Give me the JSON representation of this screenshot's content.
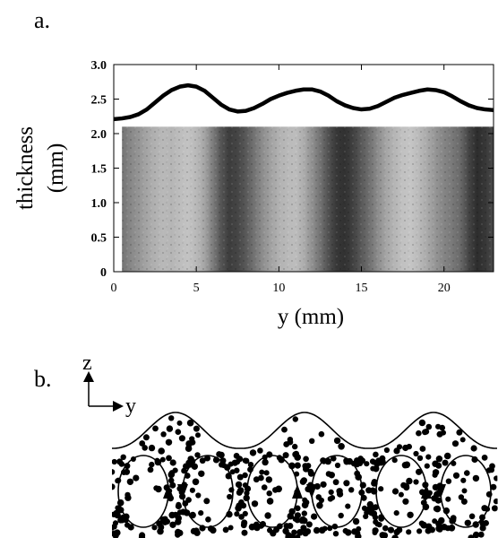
{
  "panels": {
    "a_label": "a.",
    "b_label": "b."
  },
  "chart_data": {
    "type": "line",
    "title": "",
    "xlabel": "y (mm)",
    "ylabel_line1": "thickness",
    "ylabel_line2": "(mm)",
    "xlim": [
      0,
      23
    ],
    "ylim": [
      0,
      3
    ],
    "xticks": [
      0,
      5,
      10,
      15,
      20
    ],
    "xtick_labels": [
      "0",
      "5",
      "10",
      "15",
      "20"
    ],
    "yticks": [
      0,
      0.5,
      1.0,
      1.5,
      2.0,
      2.5,
      3.0
    ],
    "ytick_labels": [
      "0",
      "0.5",
      "1.0",
      "1.5",
      "2.0",
      "2.5",
      "3.0"
    ],
    "grid": false,
    "series": [
      {
        "x": [
          0,
          0.5,
          1,
          1.5,
          2,
          2.5,
          3,
          3.5,
          4,
          4.5,
          5,
          5.5,
          6,
          6.5,
          7,
          7.5,
          8,
          8.5,
          9,
          9.5,
          10,
          10.5,
          11,
          11.5,
          12,
          12.5,
          13,
          13.5,
          14,
          14.5,
          15,
          15.5,
          16,
          16.5,
          17,
          17.5,
          18,
          18.5,
          19,
          19.5,
          20,
          20.5,
          21,
          21.5,
          22,
          22.5,
          23
        ],
        "y": [
          2.21,
          2.22,
          2.24,
          2.28,
          2.35,
          2.45,
          2.55,
          2.63,
          2.68,
          2.7,
          2.68,
          2.62,
          2.52,
          2.42,
          2.35,
          2.32,
          2.33,
          2.37,
          2.43,
          2.5,
          2.55,
          2.59,
          2.62,
          2.64,
          2.64,
          2.61,
          2.55,
          2.47,
          2.41,
          2.37,
          2.35,
          2.36,
          2.4,
          2.46,
          2.52,
          2.56,
          2.59,
          2.62,
          2.64,
          2.63,
          2.6,
          2.54,
          2.47,
          2.41,
          2.37,
          2.35,
          2.34
        ]
      }
    ],
    "image_band": {
      "ymin": 0,
      "ymax": 2.1,
      "xmin": 0.5,
      "xmax": 23
    },
    "image_intensity": {
      "x": [
        0.5,
        1,
        1.5,
        2,
        2.5,
        3,
        3.5,
        4,
        4.5,
        5,
        5.5,
        6,
        6.5,
        7,
        7.5,
        8,
        8.5,
        9,
        9.5,
        10,
        10.5,
        11,
        11.5,
        12,
        12.5,
        13,
        13.5,
        14,
        14.5,
        15,
        15.5,
        16,
        16.5,
        17,
        17.5,
        18,
        18.5,
        19,
        19.5,
        20,
        20.5,
        21,
        21.5,
        22,
        22.5,
        23
      ],
      "v": [
        0.45,
        0.55,
        0.62,
        0.7,
        0.76,
        0.8,
        0.78,
        0.82,
        0.85,
        0.8,
        0.7,
        0.5,
        0.3,
        0.18,
        0.22,
        0.32,
        0.45,
        0.58,
        0.68,
        0.76,
        0.8,
        0.82,
        0.74,
        0.6,
        0.45,
        0.28,
        0.15,
        0.12,
        0.2,
        0.32,
        0.44,
        0.58,
        0.7,
        0.78,
        0.84,
        0.86,
        0.8,
        0.72,
        0.62,
        0.54,
        0.48,
        0.4,
        0.22,
        0.1,
        0.15,
        0.25
      ]
    }
  },
  "schematic": {
    "axis_z": "z",
    "axis_y": "y",
    "particles": "dense granular packing",
    "convection_rolls": 6
  }
}
